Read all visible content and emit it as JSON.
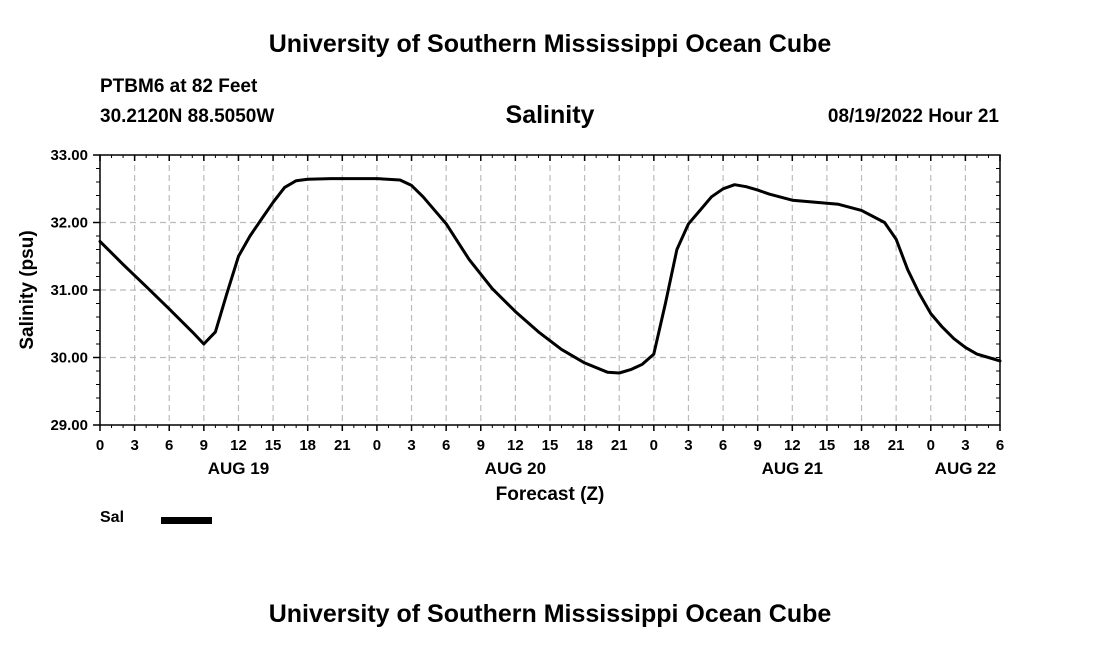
{
  "header": {
    "title_top": "University of Southern Mississippi Ocean Cube",
    "station": "PTBM6 at 82 Feet",
    "coords": "30.2120N  88.5050W",
    "chart_title": "Salinity",
    "timestamp": "08/19/2022 Hour 21",
    "title_bottom": "University of Southern Mississippi Ocean Cube"
  },
  "legend": {
    "label": "Sal"
  },
  "colors": {
    "line": "#000000",
    "grid": "#bbbbbb",
    "background": "#ffffff"
  },
  "chart_data": {
    "type": "line",
    "title": "Salinity",
    "xlabel": "Forecast (Z)",
    "ylabel": "Salinity (psu)",
    "ylim": [
      29,
      33
    ],
    "xlim": [
      0,
      78
    ],
    "x_unit": "hours from 00Z Aug 19",
    "grid": true,
    "legend_position": "bottom-left",
    "y_ticks": [
      "29.00",
      "30.00",
      "31.00",
      "32.00",
      "33.00"
    ],
    "x_ticks": [
      "0",
      "3",
      "6",
      "9",
      "12",
      "15",
      "18",
      "21",
      "0",
      "3",
      "6",
      "9",
      "12",
      "15",
      "18",
      "21",
      "0",
      "3",
      "6",
      "9",
      "12",
      "15",
      "18",
      "21",
      "0",
      "3",
      "6"
    ],
    "date_labels": [
      {
        "hour": 12,
        "label": "AUG 19"
      },
      {
        "hour": 36,
        "label": "AUG 20"
      },
      {
        "hour": 60,
        "label": "AUG 21"
      },
      {
        "hour": 75,
        "label": "AUG 22"
      }
    ],
    "series": [
      {
        "name": "Sal",
        "x": [
          0,
          2,
          4,
          6,
          8,
          9,
          10,
          11,
          12,
          13,
          14,
          15,
          16,
          17,
          18,
          20,
          22,
          24,
          26,
          27,
          28,
          30,
          32,
          34,
          36,
          38,
          40,
          42,
          44,
          45,
          46,
          47,
          48,
          49,
          50,
          51,
          52,
          53,
          54,
          55,
          56,
          57,
          58,
          60,
          62,
          64,
          66,
          68,
          69,
          70,
          71,
          72,
          73,
          74,
          75,
          76,
          77,
          78
        ],
        "y": [
          31.72,
          31.38,
          31.05,
          30.72,
          30.38,
          30.2,
          30.38,
          30.95,
          31.5,
          31.8,
          32.05,
          32.3,
          32.52,
          32.62,
          32.64,
          32.65,
          32.65,
          32.65,
          32.63,
          32.55,
          32.38,
          31.98,
          31.45,
          31.02,
          30.68,
          30.38,
          30.12,
          29.92,
          29.78,
          29.77,
          29.82,
          29.9,
          30.05,
          30.8,
          31.6,
          31.98,
          32.18,
          32.38,
          32.5,
          32.56,
          32.53,
          32.48,
          32.42,
          32.33,
          32.3,
          32.27,
          32.18,
          32.0,
          31.75,
          31.3,
          30.95,
          30.65,
          30.45,
          30.28,
          30.15,
          30.05,
          30.0,
          29.95
        ]
      }
    ]
  }
}
